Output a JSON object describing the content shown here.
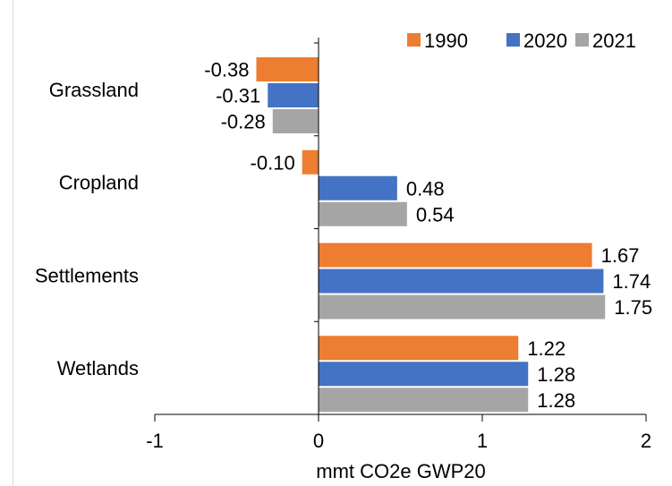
{
  "chart_data": {
    "type": "bar",
    "orientation": "horizontal",
    "categories": [
      "Grassland",
      "Cropland",
      "Settlements",
      "Wetlands"
    ],
    "series": [
      {
        "name": "1990",
        "color": "#ed7d31",
        "values": [
          -0.38,
          -0.1,
          1.67,
          1.22
        ],
        "labels": [
          "-0.38",
          "-0.10",
          "1.67",
          "1.22"
        ]
      },
      {
        "name": "2020",
        "color": "#4472c4",
        "values": [
          -0.31,
          0.48,
          1.74,
          1.28
        ],
        "labels": [
          "-0.31",
          "0.48",
          "1.74",
          "1.28"
        ]
      },
      {
        "name": "2021",
        "color": "#a5a5a5",
        "values": [
          -0.28,
          0.54,
          1.75,
          1.28
        ],
        "labels": [
          "-0.28",
          "0.54",
          "1.75",
          "1.28"
        ]
      }
    ],
    "xlabel": "mmt CO2e GWP20",
    "ylabel": "",
    "xlim": [
      -1,
      2
    ],
    "xticks": [
      -1,
      0,
      1,
      2
    ],
    "xtick_labels": [
      "-1",
      "0",
      "1",
      "2"
    ],
    "grid": false,
    "legend_position": "top-right"
  }
}
